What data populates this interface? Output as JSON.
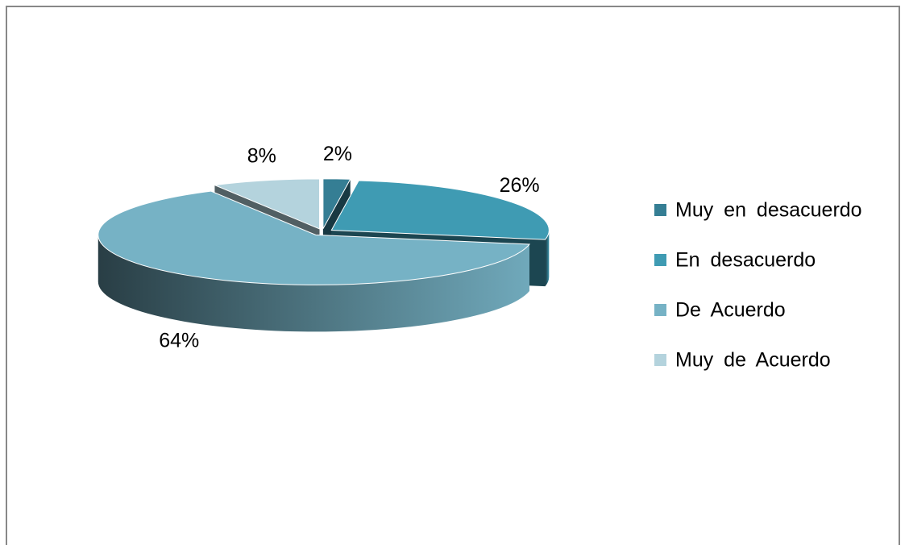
{
  "chart_data": {
    "type": "pie3d",
    "categories": [
      "Muy en desacuerdo",
      "En desacuerdo",
      "De Acuerdo",
      "Muy de Acuerdo"
    ],
    "values": [
      2,
      26,
      64,
      8
    ],
    "value_labels": [
      "2%",
      "26%",
      "64%",
      "8%"
    ],
    "colors": [
      "#357e94",
      "#3f9bb3",
      "#76b2c5",
      "#b4d3dd"
    ],
    "legend": "right"
  }
}
